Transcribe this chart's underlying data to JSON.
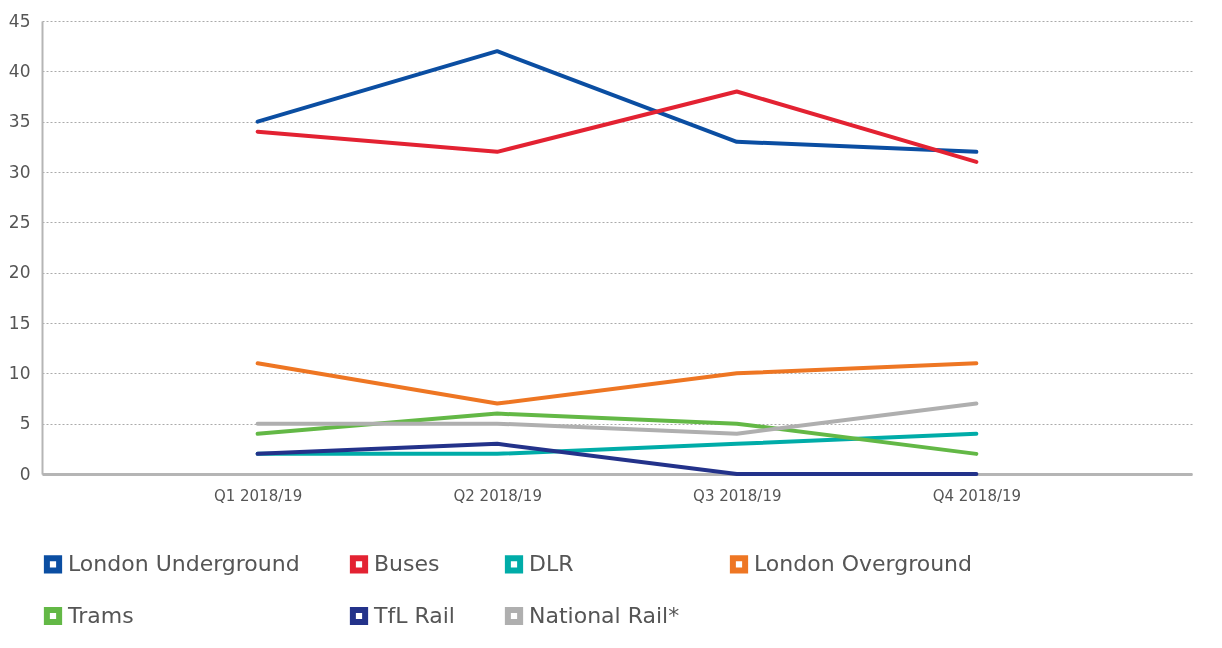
{
  "chart_data": {
    "type": "line",
    "categories": [
      "Q1 2018/19",
      "Q2 2018/19",
      "Q3 2018/19",
      "Q4 2018/19"
    ],
    "series": [
      {
        "name": "London Underground",
        "color": "#0b4ea2",
        "values": [
          35,
          42,
          33,
          32
        ]
      },
      {
        "name": "Buses",
        "color": "#e32232",
        "values": [
          34,
          32,
          38,
          31
        ]
      },
      {
        "name": "DLR",
        "color": "#00aca8",
        "values": [
          2,
          2,
          3,
          4
        ]
      },
      {
        "name": "London Overground",
        "color": "#ee7623",
        "values": [
          11,
          7,
          10,
          11
        ]
      },
      {
        "name": "Trams",
        "color": "#63b846",
        "values": [
          4,
          6,
          5,
          2
        ]
      },
      {
        "name": "TfL Rail",
        "color": "#23328a",
        "values": [
          2,
          3,
          0,
          0
        ]
      },
      {
        "name": "National Rail*",
        "color": "#afafaf",
        "values": [
          5,
          5,
          4,
          7
        ]
      }
    ],
    "ylim": [
      0,
      45
    ],
    "yticks": [
      0,
      5,
      10,
      15,
      20,
      25,
      30,
      35,
      40,
      45
    ],
    "grid": "y",
    "legend": "bottom",
    "marker": "none",
    "line_style": "solid"
  }
}
